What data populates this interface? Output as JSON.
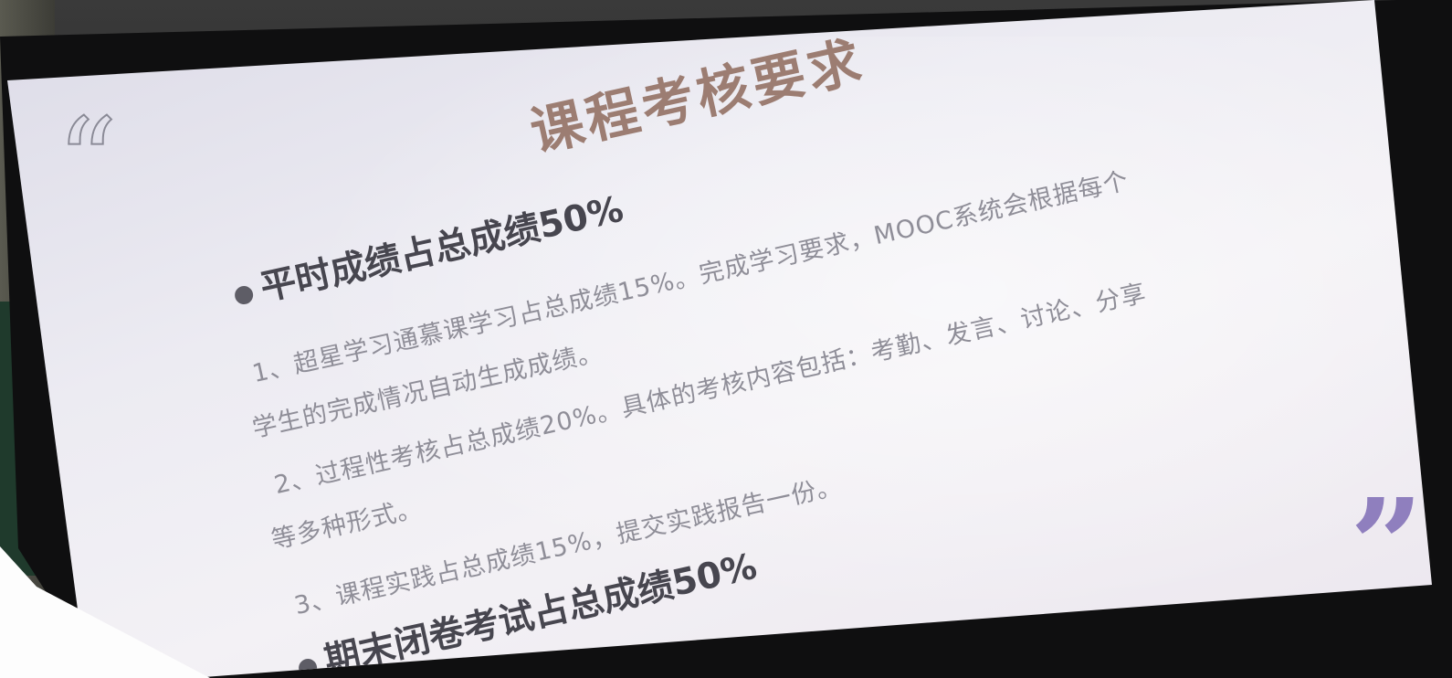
{
  "slide": {
    "title": "课程考核要求",
    "quote_open_glyph": "“",
    "quote_close_glyph": "”",
    "sections": [
      {
        "heading": "平时成绩占总成绩50%",
        "items": [
          {
            "line1": "1、超星学习通慕课学习占总成绩15%。完成学习要求，MOOC系统会根据每个",
            "line2": "学生的完成情况自动生成成绩。"
          },
          {
            "line1": "2、过程性考核占总成绩20%。具体的考核内容包括：考勤、发言、讨论、分享",
            "line2": "等多种形式。"
          },
          {
            "line1": "3、课程实践占总成绩15%，提交实践报告一份。"
          }
        ]
      },
      {
        "heading": "期末闭卷考试占总成绩50%"
      }
    ]
  },
  "colors": {
    "title": "#9c7d72",
    "heading": "#47464f",
    "body_text": "#8f8e98",
    "quote_open": "#8a8a96",
    "quote_close": "#8f7fbe",
    "slide_background": "#ecebf2"
  },
  "icons": {
    "quote_open": "open-quote-outline-icon",
    "quote_close": "close-quote-filled-icon",
    "bullet": "bullet-dot-icon"
  }
}
